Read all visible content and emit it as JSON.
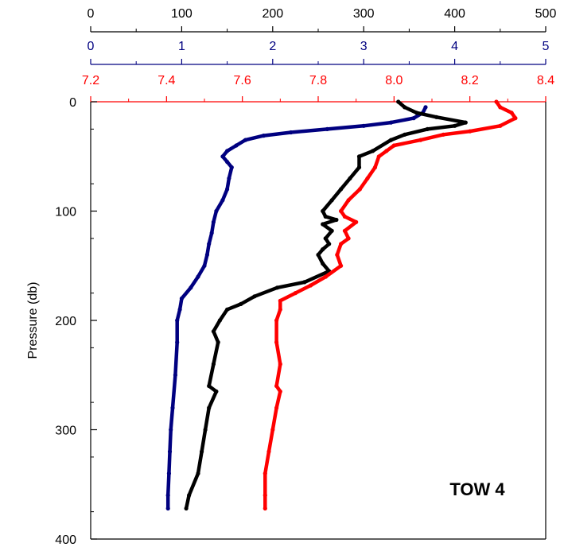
{
  "chart_data": {
    "type": "line",
    "ylabel": "Pressure (db)",
    "ylim": [
      400,
      0
    ],
    "y_ticks": [
      0,
      100,
      200,
      300,
      400
    ],
    "annotation": "TOW 4",
    "grid": false,
    "x_axes": [
      {
        "color": "#000000",
        "range": [
          0,
          500
        ],
        "ticks": [
          0,
          100,
          200,
          300,
          400,
          500
        ],
        "tick_labels": [
          "0",
          "100",
          "200",
          "300",
          "400",
          "500"
        ]
      },
      {
        "color": "#000080",
        "range": [
          0,
          5
        ],
        "ticks": [
          0,
          1,
          2,
          3,
          4,
          5
        ],
        "tick_labels": [
          "0",
          "1",
          "2",
          "3",
          "4",
          "5"
        ]
      },
      {
        "color": "#ff0000",
        "range": [
          7.2,
          8.4
        ],
        "ticks": [
          7.2,
          7.4,
          7.6,
          7.8,
          8.0,
          8.2,
          8.4
        ],
        "tick_labels": [
          "7.2",
          "7.4",
          "7.6",
          "7.8",
          "8.0",
          "8.2",
          "8.4"
        ]
      }
    ],
    "series": [
      {
        "color": "#000080",
        "axis": 1,
        "points": [
          [
            3.68,
            5
          ],
          [
            3.65,
            10
          ],
          [
            3.55,
            15
          ],
          [
            3.3,
            19
          ],
          [
            3.0,
            22
          ],
          [
            2.6,
            25
          ],
          [
            2.2,
            28
          ],
          [
            1.9,
            31
          ],
          [
            1.7,
            35
          ],
          [
            1.6,
            40
          ],
          [
            1.5,
            45
          ],
          [
            1.45,
            50
          ],
          [
            1.5,
            55
          ],
          [
            1.55,
            60
          ],
          [
            1.52,
            70
          ],
          [
            1.5,
            80
          ],
          [
            1.45,
            90
          ],
          [
            1.38,
            100
          ],
          [
            1.35,
            110
          ],
          [
            1.33,
            120
          ],
          [
            1.3,
            130
          ],
          [
            1.28,
            140
          ],
          [
            1.25,
            150
          ],
          [
            1.18,
            160
          ],
          [
            1.1,
            170
          ],
          [
            1.0,
            180
          ],
          [
            0.98,
            190
          ],
          [
            0.95,
            200
          ],
          [
            0.95,
            220
          ],
          [
            0.93,
            250
          ],
          [
            0.9,
            280
          ],
          [
            0.88,
            300
          ],
          [
            0.87,
            320
          ],
          [
            0.86,
            340
          ],
          [
            0.85,
            360
          ],
          [
            0.85,
            372
          ]
        ]
      },
      {
        "color": "#000000",
        "axis": 0,
        "points": [
          [
            338,
            0
          ],
          [
            345,
            5
          ],
          [
            358,
            10
          ],
          [
            380,
            14
          ],
          [
            412,
            19
          ],
          [
            400,
            22
          ],
          [
            370,
            25
          ],
          [
            345,
            30
          ],
          [
            330,
            35
          ],
          [
            310,
            45
          ],
          [
            295,
            50
          ],
          [
            295,
            60
          ],
          [
            285,
            70
          ],
          [
            275,
            80
          ],
          [
            265,
            90
          ],
          [
            255,
            100
          ],
          [
            258,
            105
          ],
          [
            270,
            108
          ],
          [
            255,
            112
          ],
          [
            265,
            118
          ],
          [
            258,
            125
          ],
          [
            262,
            130
          ],
          [
            255,
            135
          ],
          [
            250,
            140
          ],
          [
            255,
            148
          ],
          [
            262,
            155
          ],
          [
            235,
            165
          ],
          [
            205,
            170
          ],
          [
            180,
            178
          ],
          [
            165,
            185
          ],
          [
            150,
            190
          ],
          [
            142,
            200
          ],
          [
            135,
            210
          ],
          [
            140,
            220
          ],
          [
            135,
            240
          ],
          [
            130,
            260
          ],
          [
            138,
            265
          ],
          [
            130,
            280
          ],
          [
            126,
            300
          ],
          [
            122,
            320
          ],
          [
            118,
            340
          ],
          [
            108,
            360
          ],
          [
            105,
            372
          ]
        ]
      },
      {
        "color": "#ff0000",
        "axis": 2,
        "points": [
          [
            8.27,
            0
          ],
          [
            8.28,
            5
          ],
          [
            8.31,
            10
          ],
          [
            8.32,
            15
          ],
          [
            8.28,
            22
          ],
          [
            8.2,
            27
          ],
          [
            8.13,
            30
          ],
          [
            8.07,
            35
          ],
          [
            8.0,
            40
          ],
          [
            7.98,
            45
          ],
          [
            7.96,
            50
          ],
          [
            7.95,
            60
          ],
          [
            7.93,
            70
          ],
          [
            7.91,
            80
          ],
          [
            7.88,
            90
          ],
          [
            7.86,
            100
          ],
          [
            7.87,
            105
          ],
          [
            7.9,
            110
          ],
          [
            7.87,
            118
          ],
          [
            7.88,
            125
          ],
          [
            7.86,
            130
          ],
          [
            7.85,
            140
          ],
          [
            7.86,
            150
          ],
          [
            7.82,
            160
          ],
          [
            7.78,
            168
          ],
          [
            7.74,
            175
          ],
          [
            7.7,
            182
          ],
          [
            7.7,
            190
          ],
          [
            7.69,
            200
          ],
          [
            7.69,
            220
          ],
          [
            7.7,
            240
          ],
          [
            7.69,
            260
          ],
          [
            7.7,
            265
          ],
          [
            7.69,
            280
          ],
          [
            7.68,
            300
          ],
          [
            7.67,
            320
          ],
          [
            7.66,
            340
          ],
          [
            7.66,
            360
          ],
          [
            7.66,
            372
          ]
        ]
      }
    ]
  }
}
